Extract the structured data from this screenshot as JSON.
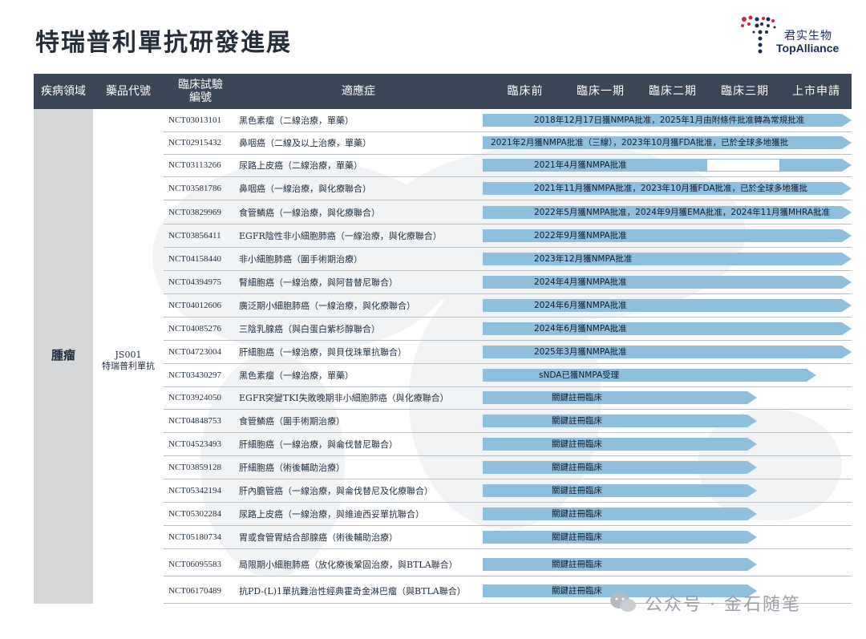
{
  "title": "特瑞普利單抗研發進展",
  "logo": {
    "cn": "君实生物",
    "en": "TopAlliance"
  },
  "header": {
    "area": "疾病領域",
    "code": "藥品代號",
    "trial_line1": "臨床試驗",
    "trial_line2": "編號",
    "indication": "適應症",
    "phases": [
      "臨床前",
      "臨床一期",
      "臨床二期",
      "臨床三期",
      "上市申請"
    ]
  },
  "area": "腫瘤",
  "drug": {
    "code": "JS001",
    "name": "特瑞普利單抗"
  },
  "colors": {
    "header": "#3a4558",
    "bar": "#8fbfdf",
    "side": "#d5d7d9"
  },
  "rows": [
    {
      "nct": "NCT03013101",
      "ind": "黑色素瘤（二線治療，單藥）",
      "status": "2018年12月17日獲NMPA批准，2025年1月由附條件批准轉為常規批准",
      "stage": "上市申請"
    },
    {
      "nct": "NCT02915432",
      "ind": "鼻咽癌（二線及以上治療，單藥）",
      "status": "2021年2月獲NMPA批准（三線），2023年10月獲FDA批准，已於全球多地獲批",
      "stage": "上市申請"
    },
    {
      "nct": "NCT03113266",
      "ind": "尿路上皮癌（二線治療，單藥）",
      "status": "2021年4月獲NMPA批准",
      "stage": "上市申請"
    },
    {
      "nct": "NCT03581786",
      "ind": "鼻咽癌（一線治療，與化療聯合）",
      "status": "2021年11月獲NMPA批准，2023年10月獲FDA批准，已於全球多地獲批",
      "stage": "上市申請"
    },
    {
      "nct": "NCT03829969",
      "ind": "食管鱗癌（一線治療，與化療聯合）",
      "status": "2022年5月獲NMPA批准，2024年9月獲EMA批准，2024年11月獲MHRA批准",
      "stage": "上市申請"
    },
    {
      "nct": "NCT03856411",
      "ind": "EGFR陰性非小細胞肺癌（一線治療，與化療聯合）",
      "status": "2022年9月獲NMPA批准",
      "stage": "上市申請"
    },
    {
      "nct": "NCT04158440",
      "ind": "非小細胞肺癌（圍手術期治療）",
      "status": "2023年12月獲NMPA批准",
      "stage": "上市申請"
    },
    {
      "nct": "NCT04394975",
      "ind": "腎細胞癌（一線治療，與阿昔替尼聯合）",
      "status": "2024年4月獲NMPA批准",
      "stage": "上市申請"
    },
    {
      "nct": "NCT04012606",
      "ind": "廣泛期小細胞肺癌（一線治療，與化療聯合）",
      "status": "2024年6月獲NMPA批准",
      "stage": "上市申請"
    },
    {
      "nct": "NCT04085276",
      "ind": "三陰乳腺癌（與白蛋白紫杉醇聯合）",
      "status": "2024年6月獲NMPA批准",
      "stage": "上市申請"
    },
    {
      "nct": "NCT04723004",
      "ind": "肝細胞癌（一線治療，與貝伐珠單抗聯合）",
      "status": "2025年3月獲NMPA批准",
      "stage": "上市申請"
    },
    {
      "nct": "NCT03430297",
      "ind": "黑色素瘤（一線治療，單藥）",
      "status": "sNDA已獲NMPA受理",
      "stage": "上市申請"
    },
    {
      "nct": "NCT03924050",
      "ind": "EGFR突變TKI失敗晚期非小細胞肺癌（與化療聯合）",
      "status": "關鍵註冊臨床",
      "stage": "臨床三期"
    },
    {
      "nct": "NCT04848753",
      "ind": "食管鱗癌（圍手術期治療）",
      "status": "關鍵註冊臨床",
      "stage": "臨床三期"
    },
    {
      "nct": "NCT04523493",
      "ind": "肝細胞癌（一線治療，與侖伐替尼聯合）",
      "status": "關鍵註冊臨床",
      "stage": "臨床三期"
    },
    {
      "nct": "NCT03859128",
      "ind": "肝細胞癌（術後輔助治療）",
      "status": "關鍵註冊臨床",
      "stage": "臨床三期"
    },
    {
      "nct": "NCT05342194",
      "ind": "肝內膽管癌（一線治療，與侖伐替尼及化療聯合）",
      "status": "關鍵註冊臨床",
      "stage": "臨床三期"
    },
    {
      "nct": "NCT05302284",
      "ind": "尿路上皮癌（一線治療，與維迪西妥單抗聯合）",
      "status": "關鍵註冊臨床",
      "stage": "臨床三期"
    },
    {
      "nct": "NCT05180734",
      "ind": "胃或食管胃結合部腺癌（術後輔助治療）",
      "status": "關鍵註冊臨床",
      "stage": "臨床三期"
    },
    {
      "nct": "NCT06095583",
      "ind": "局限期小細胞肺癌（放化療後鞏固治療，與BTLA聯合）",
      "status": "關鍵註冊臨床",
      "stage": "臨床三期"
    },
    {
      "nct": "NCT06170489",
      "ind": "抗PD-(L)1單抗難治性經典霍奇金淋巴瘤（與BTLA聯合）",
      "status": "關鍵註冊臨床",
      "stage": "臨床三期"
    }
  ],
  "watermark": "公众号 · 金石随笔"
}
